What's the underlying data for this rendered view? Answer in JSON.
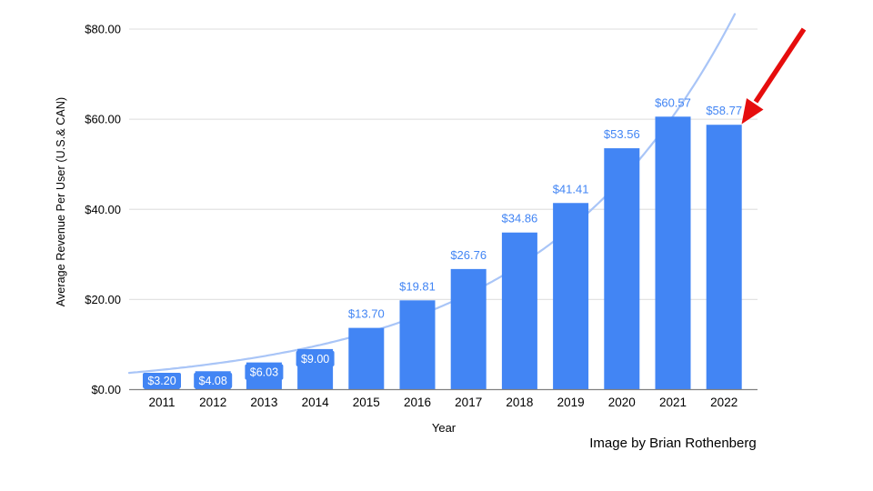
{
  "chart_data": {
    "type": "bar",
    "title": "",
    "xlabel": "Year",
    "ylabel": "Average Revenue Per User (U.S.& CAN)",
    "categories": [
      "2011",
      "2012",
      "2013",
      "2014",
      "2015",
      "2016",
      "2017",
      "2018",
      "2019",
      "2020",
      "2021",
      "2022"
    ],
    "values": [
      3.2,
      4.08,
      6.03,
      9.0,
      13.7,
      19.81,
      26.76,
      34.86,
      41.41,
      53.56,
      60.57,
      58.77
    ],
    "bar_labels": [
      "$3.20",
      "$4.08",
      "$6.03",
      "$9.00",
      "$13.70",
      "$19.81",
      "$26.76",
      "$34.86",
      "$41.41",
      "$53.56",
      "$60.57",
      "$58.77"
    ],
    "label_inside": [
      true,
      true,
      true,
      true,
      false,
      false,
      false,
      false,
      false,
      false,
      false,
      false
    ],
    "y_ticks": {
      "labels": [
        "$0.00",
        "$20.00",
        "$40.00",
        "$60.00",
        "$80.00"
      ],
      "values": [
        0,
        20,
        40,
        60,
        80
      ]
    },
    "ylim": [
      0,
      80
    ],
    "grid": true,
    "legend": "none",
    "trendline": {
      "type": "exponential",
      "start_value": 4.4,
      "growth_ratio": 1.3,
      "color": "#A9C5F7"
    },
    "colors": {
      "bar": "#4285F4",
      "label_inside_text": "#FFFFFF",
      "label_outside_text": "#4285F4",
      "gridline": "#E3E3E3",
      "axis_line": "#808080",
      "tick_text": "#000000"
    }
  },
  "annotations": {
    "arrow": {
      "color": "#E60D0D",
      "target_bar": "2022"
    }
  },
  "attribution": "Image by Brian Rothenberg"
}
